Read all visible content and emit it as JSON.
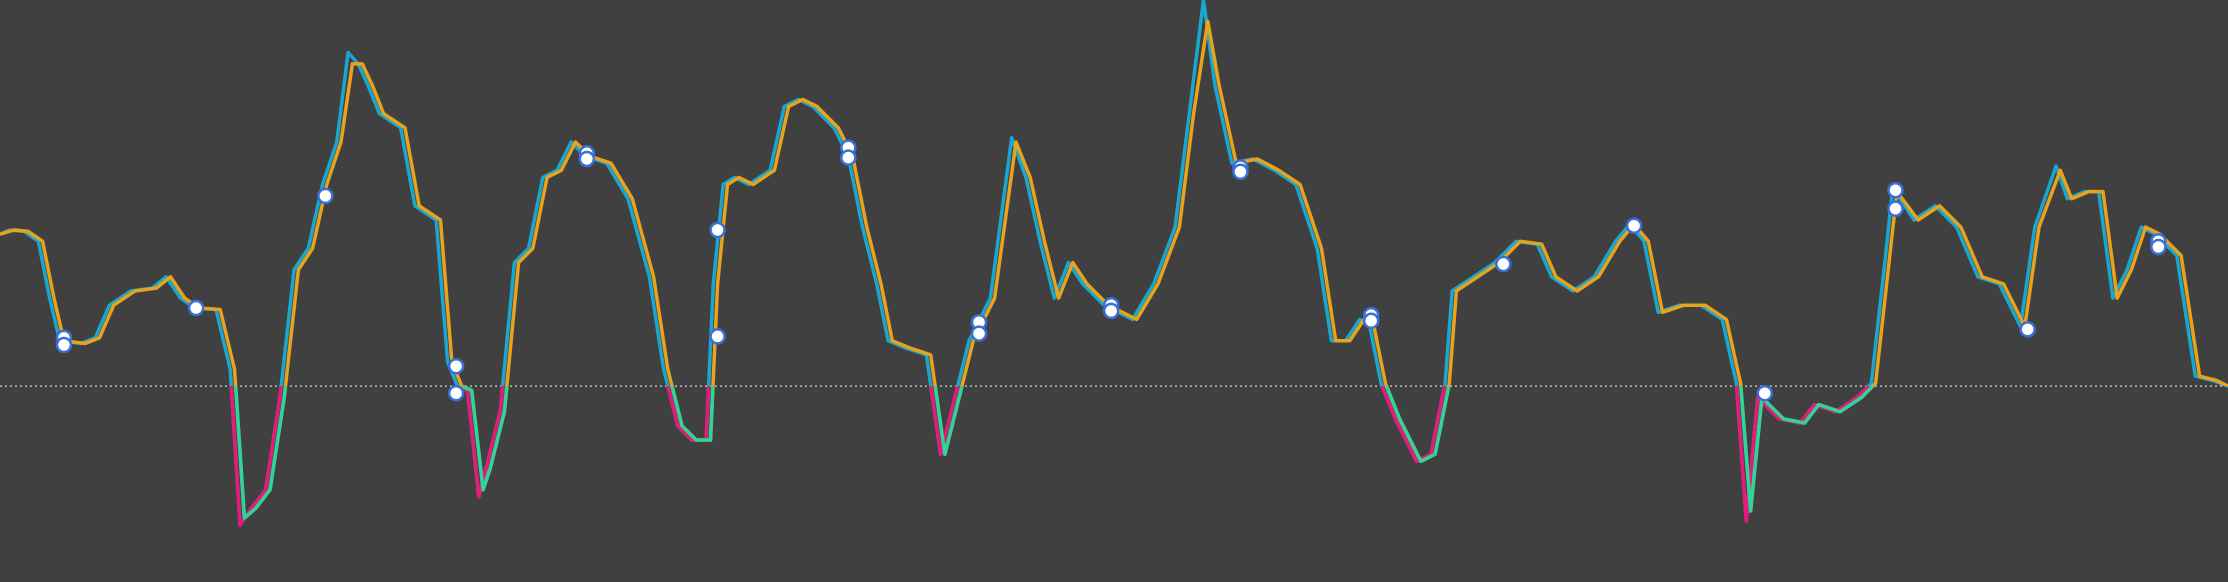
{
  "chart_data": {
    "type": "line",
    "background": "#404040",
    "xlim": [
      0,
      1568
    ],
    "ylim": [
      -138,
      272
    ],
    "yticks": [
      0
    ],
    "zero_line": true,
    "series": [
      {
        "color": "#1aa7cf",
        "below_color": "#e8197a",
        "x": [
          0,
          7,
          17,
          27,
          35,
          42,
          57,
          67,
          77,
          92,
          107,
          117,
          127,
          137,
          152,
          162,
          169,
          177,
          187,
          197,
          207,
          217,
          227,
          237,
          245,
          252,
          259,
          267,
          282,
          292,
          307,
          315,
          322,
          329,
          337,
          342,
          352,
          362,
          372,
          382,
          392,
          402,
          412,
          427,
          442,
          457,
          467,
          477,
          487,
          497,
          502,
          509,
          517,
          527,
          542,
          552,
          562,
          572,
          587,
          597,
          607,
          617,
          625,
          637,
          652,
          662,
          672,
          682,
          697,
          712,
          722,
          732,
          742,
          752,
          762,
          777,
          787,
          797,
          812,
          827,
          837,
          847,
          855,
          867,
          882,
          897,
          912,
          927,
          937,
          947,
          957,
          964,
          972,
          982,
          997,
          1007,
          1017,
          1022,
          1037,
          1052,
          1067,
          1082,
          1092,
          1107,
          1122,
          1137,
          1147,
          1157,
          1167,
          1182,
          1197,
          1212,
          1222,
          1229,
          1237,
          1252,
          1267,
          1277,
          1292,
          1307,
          1317,
          1327,
          1332,
          1347,
          1362,
          1377,
          1392,
          1407,
          1422,
          1432,
          1447,
          1455,
          1467,
          1477,
          1487,
          1497,
          1507,
          1517,
          1532,
          1545,
          1557,
          1568
        ],
        "values": [
          107,
          110,
          109,
          102,
          62,
          32,
          30,
          34,
          57,
          67,
          69,
          77,
          62,
          55,
          54,
          12,
          -98,
          -86,
          -73,
          -8,
          82,
          97,
          142,
          172,
          235,
          227,
          212,
          192,
          182,
          127,
          117,
          17,
          0,
          -3,
          -78,
          -58,
          -18,
          87,
          97,
          147,
          152,
          172,
          162,
          157,
          132,
          77,
          12,
          -28,
          -38,
          -38,
          72,
          142,
          147,
          142,
          152,
          197,
          202,
          197,
          182,
          162,
          112,
          72,
          32,
          27,
          22,
          -48,
          -8,
          32,
          62,
          175,
          147,
          102,
          62,
          87,
          72,
          57,
          52,
          47,
          72,
          112,
          192,
          272,
          212,
          157,
          160,
          152,
          142,
          97,
          32,
          32,
          47,
          42,
          2,
          -23,
          -53,
          -48,
          2,
          67,
          77,
          87,
          102,
          100,
          77,
          67,
          77,
          102,
          114,
          102,
          52,
          57,
          57,
          47,
          2,
          -95,
          -8,
          -23,
          -26,
          -13,
          -18,
          -8,
          2,
          92,
          140,
          117,
          127,
          112,
          77,
          72,
          42,
          112,
          155,
          132,
          137,
          137,
          62,
          82,
          112,
          107,
          92,
          7,
          4,
          0
        ]
      },
      {
        "color": "#e9a21c",
        "below_color": "#2fd49a",
        "x": [
          0,
          10,
          20,
          30,
          38,
          45,
          60,
          70,
          80,
          95,
          110,
          120,
          130,
          140,
          155,
          165,
          172,
          180,
          190,
          200,
          210,
          220,
          230,
          240,
          248,
          255,
          262,
          270,
          285,
          295,
          310,
          318,
          325,
          332,
          340,
          345,
          355,
          365,
          375,
          385,
          395,
          405,
          415,
          430,
          445,
          460,
          470,
          480,
          490,
          500,
          505,
          512,
          520,
          530,
          545,
          555,
          565,
          575,
          590,
          600,
          610,
          620,
          628,
          640,
          655,
          665,
          675,
          685,
          700,
          715,
          725,
          735,
          745,
          755,
          765,
          780,
          790,
          800,
          815,
          830,
          840,
          850,
          858,
          870,
          885,
          900,
          915,
          930,
          940,
          950,
          960,
          967,
          975,
          985,
          1000,
          1010,
          1020,
          1025,
          1040,
          1055,
          1070,
          1085,
          1095,
          1110,
          1125,
          1140,
          1150,
          1160,
          1170,
          1185,
          1200,
          1215,
          1225,
          1232,
          1240,
          1255,
          1270,
          1280,
          1295,
          1310,
          1320,
          1330,
          1335,
          1350,
          1365,
          1380,
          1395,
          1410,
          1425,
          1435,
          1450,
          1458,
          1470,
          1480,
          1490,
          1500,
          1510,
          1520,
          1535,
          1548,
          1560,
          1568
        ],
        "values": [
          107,
          110,
          109,
          102,
          62,
          32,
          30,
          34,
          57,
          67,
          69,
          77,
          62,
          55,
          54,
          12,
          -93,
          -86,
          -73,
          -8,
          82,
          97,
          142,
          172,
          227,
          227,
          212,
          192,
          182,
          127,
          117,
          17,
          0,
          -3,
          -73,
          -58,
          -18,
          87,
          97,
          147,
          152,
          172,
          162,
          157,
          132,
          77,
          12,
          -28,
          -38,
          -38,
          72,
          142,
          147,
          142,
          152,
          197,
          202,
          197,
          182,
          162,
          112,
          72,
          32,
          27,
          22,
          -48,
          -8,
          32,
          62,
          172,
          147,
          102,
          62,
          87,
          72,
          57,
          52,
          47,
          72,
          112,
          192,
          257,
          212,
          157,
          160,
          152,
          142,
          97,
          32,
          32,
          47,
          42,
          2,
          -23,
          -53,
          -48,
          2,
          67,
          77,
          87,
          102,
          100,
          77,
          67,
          77,
          102,
          114,
          102,
          52,
          57,
          57,
          47,
          2,
          -88,
          -8,
          -23,
          -26,
          -13,
          -18,
          -8,
          2,
          92,
          137,
          117,
          127,
          112,
          77,
          72,
          42,
          112,
          152,
          132,
          137,
          137,
          62,
          82,
          112,
          107,
          92,
          7,
          4,
          0
        ]
      }
    ],
    "markers": {
      "color": "#3a6fd8",
      "x": [
        45,
        45,
        138,
        229,
        321,
        321,
        413,
        413,
        505,
        505,
        597,
        597,
        689,
        689,
        782,
        782,
        873,
        873,
        965,
        965,
        1058,
        1150,
        1242,
        1334,
        1334,
        1427,
        1519,
        1519
      ],
      "values": [
        34,
        29,
        55,
        134,
        14,
        -5,
        164,
        160,
        110,
        35,
        168,
        161,
        45,
        37,
        57,
        53,
        154,
        151,
        50,
        46,
        86,
        113,
        -5,
        138,
        125,
        40,
        102,
        98
      ]
    }
  }
}
